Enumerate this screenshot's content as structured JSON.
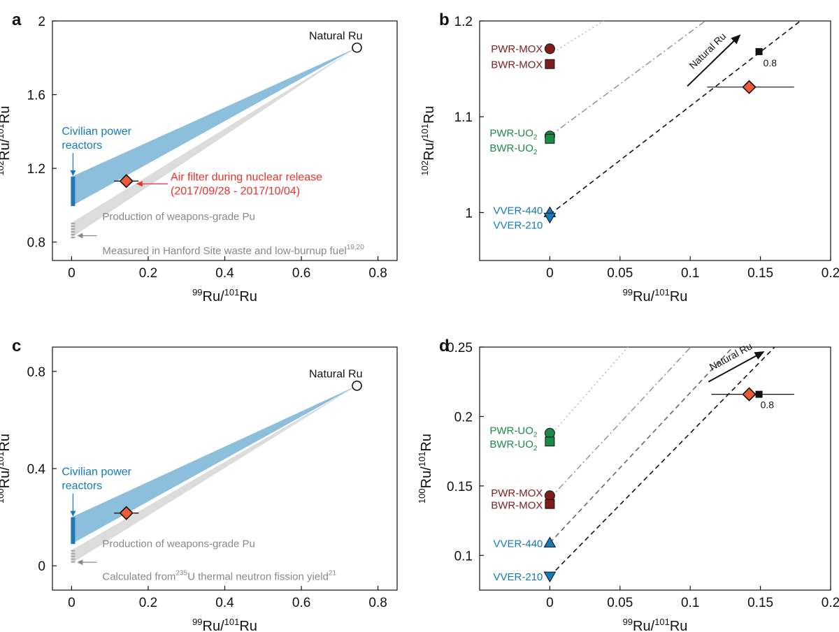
{
  "chart_data": [
    {
      "panel_letter": "a",
      "type": "scatter",
      "xlabel": "99Ru/101Ru",
      "ylabel": "102Ru/101Ru",
      "xlim": [
        -0.05,
        0.85
      ],
      "ylim": [
        0.7,
        2.0
      ],
      "x_ticks": [
        "0",
        "0.2",
        "0.4",
        "0.6",
        "0.8"
      ],
      "y_ticks": [
        "0.8",
        "1.2",
        "1.6",
        "2"
      ],
      "natural_point": {
        "label": "Natural Ru",
        "x": 0.745,
        "y": 1.855
      },
      "measured_point": {
        "x": 0.143,
        "y": 1.131,
        "x_err": 0.032
      },
      "civilian_range": [
        0.995,
        1.155
      ],
      "weapons_range": [
        0.825,
        0.905
      ],
      "civilian_label": "Civilian power reactors",
      "air_filter_label": "Air filter during nuclear release",
      "air_filter_dates": "(2017/09/28 - 2017/10/04)",
      "weapons_label_1": "Production of weapons-grade Pu",
      "weapons_label_2": "Measured in Hanford Site waste and low-burnup fuel",
      "weapons_ref": "19,20",
      "grid": false
    },
    {
      "panel_letter": "b",
      "type": "scatter",
      "xlabel": "99Ru/101Ru",
      "ylabel": "102Ru/101Ru",
      "xlim": [
        -0.05,
        0.2
      ],
      "ylim": [
        0.95,
        1.2
      ],
      "x_ticks": [
        "0",
        "0.05",
        "0.1",
        "0.15",
        "0.2"
      ],
      "y_ticks": [
        "1",
        "1.1",
        "1.2"
      ],
      "reactor_points": [
        {
          "name": "PWR-MOX",
          "x": 0,
          "y": 1.171,
          "marker": "circle",
          "color": "#7f1d1d"
        },
        {
          "name": "BWR-MOX",
          "x": 0,
          "y": 1.155,
          "marker": "square",
          "color": "#7f1d1d"
        },
        {
          "name": "PWR-UO2",
          "x": 0,
          "y": 1.08,
          "marker": "circle",
          "color": "#1a8a47"
        },
        {
          "name": "BWR-UO2",
          "x": 0,
          "y": 1.077,
          "marker": "square",
          "color": "#1a8a47"
        },
        {
          "name": "VVER-440",
          "x": 0,
          "y": 1.0,
          "marker": "triangle-up",
          "color": "#1479b8"
        },
        {
          "name": "VVER-210",
          "x": 0,
          "y": 0.995,
          "marker": "triangle-down",
          "color": "#1479b8"
        }
      ],
      "measured_point": {
        "x": 0.142,
        "y": 1.131,
        "xerr_low": 0.112,
        "xerr_high": 0.174
      },
      "square_point": {
        "x": 0.149,
        "y": 1.168,
        "label": "0.8"
      },
      "natural_arrow_label": "Natural Ru",
      "grid": false
    },
    {
      "panel_letter": "c",
      "type": "scatter",
      "xlabel": "99Ru/101Ru",
      "ylabel": "100Ru/101Ru",
      "xlim": [
        -0.05,
        0.85
      ],
      "ylim": [
        -0.1,
        0.9
      ],
      "x_ticks": [
        "0",
        "0.2",
        "0.4",
        "0.6",
        "0.8"
      ],
      "y_ticks": [
        "0",
        "0.4",
        "0.8"
      ],
      "natural_point": {
        "label": "Natural Ru",
        "x": 0.745,
        "y": 0.741
      },
      "measured_point": {
        "x": 0.143,
        "y": 0.217,
        "x_err": 0.032
      },
      "civilian_range": [
        0.09,
        0.2
      ],
      "weapons_range": [
        0.01,
        0.065
      ],
      "civilian_label": "Civilian power reactors",
      "weapons_label_1": "Production of weapons-grade Pu",
      "weapons_label_2a": "Calculated from",
      "weapons_iso": "235",
      "weapons_label_2b": "U thermal neutron fission yield",
      "weapons_ref": "21",
      "grid": false
    },
    {
      "panel_letter": "d",
      "type": "scatter",
      "xlabel": "99Ru/101Ru",
      "ylabel": "100Ru/101Ru",
      "xlim": [
        -0.05,
        0.2
      ],
      "ylim": [
        0.075,
        0.25
      ],
      "x_ticks": [
        "0",
        "0.05",
        "0.1",
        "0.15",
        "0.2"
      ],
      "y_ticks": [
        "0.1",
        "0.15",
        "0.2",
        "0.25"
      ],
      "reactor_points": [
        {
          "name": "PWR-UO2",
          "x": 0,
          "y": 0.188,
          "marker": "circle",
          "color": "#1a8a47"
        },
        {
          "name": "BWR-UO2",
          "x": 0,
          "y": 0.182,
          "marker": "square",
          "color": "#1a8a47"
        },
        {
          "name": "PWR-MOX",
          "x": 0,
          "y": 0.143,
          "marker": "circle",
          "color": "#7f1d1d"
        },
        {
          "name": "BWR-MOX",
          "x": 0,
          "y": 0.137,
          "marker": "square",
          "color": "#7f1d1d"
        },
        {
          "name": "VVER-440",
          "x": 0,
          "y": 0.109,
          "marker": "triangle-up",
          "color": "#1479b8"
        },
        {
          "name": "VVER-210",
          "x": 0,
          "y": 0.085,
          "marker": "triangle-down",
          "color": "#1479b8"
        }
      ],
      "measured_point": {
        "x": 0.142,
        "y": 0.216,
        "xerr_low": 0.115,
        "xerr_high": 0.174
      },
      "square_point": {
        "x": 0.149,
        "y": 0.216,
        "label": "0.8"
      },
      "natural_arrow_label": "Natural Ru",
      "grid": false
    }
  ],
  "colors": {
    "band_blue": "#8bbfdc",
    "band_grey": "#dcdcdc",
    "civilian_text": "#1479b8",
    "air_filter_red": "#e8312a",
    "diamond_fill": "#ef5a36",
    "grey_text": "#888888"
  }
}
